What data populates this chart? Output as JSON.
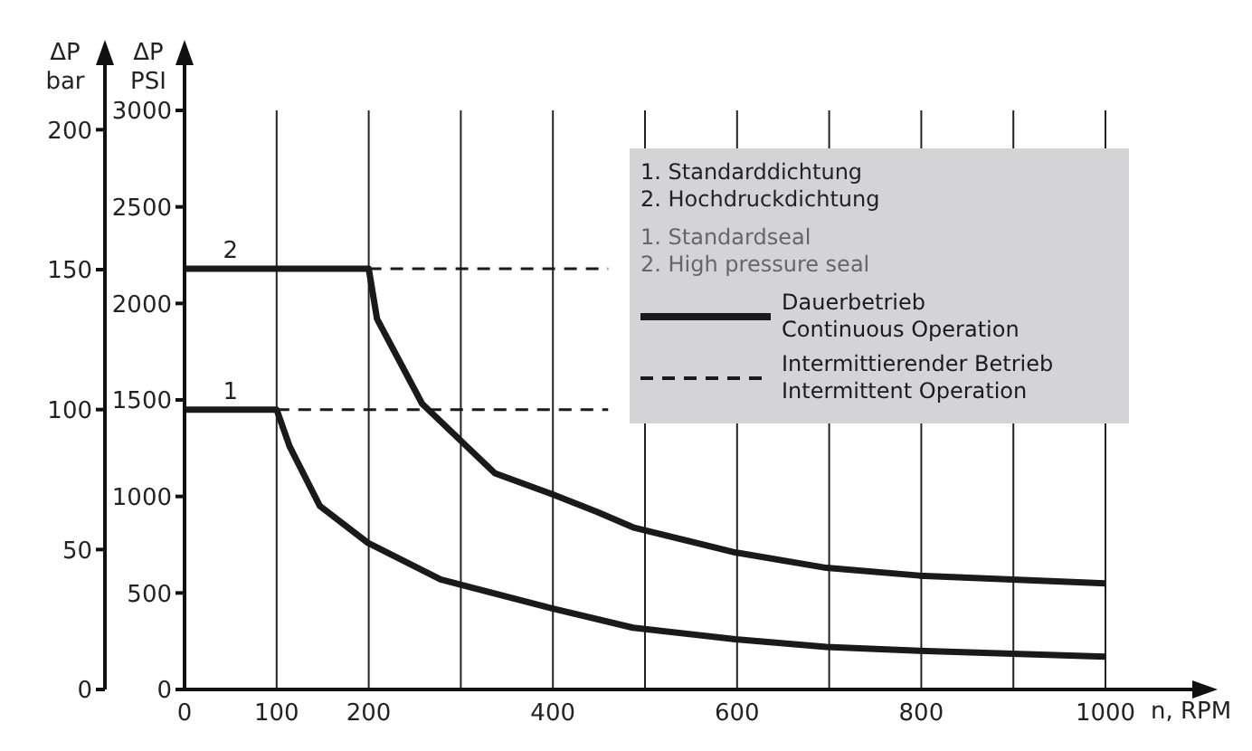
{
  "chart_data": {
    "type": "line",
    "xlabel": "n, RPM",
    "ylabel": "ΔP\nPSI",
    "y2label": "ΔP\nbar",
    "xlim": [
      0,
      1000
    ],
    "xticks": [
      0,
      100,
      200,
      {
        "value": 300,
        "label": null
      },
      400,
      {
        "value": 500,
        "label": null
      },
      600,
      {
        "value": 700,
        "label": null
      },
      800,
      {
        "value": 900,
        "label": null
      },
      1000
    ],
    "ylim": [
      0,
      3000
    ],
    "yticks": [
      0,
      500,
      1000,
      1500,
      2000,
      2500,
      3000
    ],
    "y2lim": [
      0,
      206.9
    ],
    "y2ticks": [
      0,
      50,
      100,
      150,
      200
    ],
    "grid": true,
    "legend": "top right",
    "line_style": "solid",
    "marker": "none",
    "series": [
      {
        "name": "Dauerbetrieb\nContinuous Operation",
        "color": "#1a1a1a",
        "x": [
          0,
          100,
          114,
          147,
          199,
          278,
          399,
          487,
          598,
          697,
          798,
          1000
        ],
        "values": [
          1450,
          1450,
          1260,
          950,
          760,
          570,
          420,
          320,
          260,
          220,
          200,
          170
        ]
      },
      {
        "color": "#1a1a1a",
        "x": [
          0,
          200,
          209,
          258,
          337,
          400,
          448,
          487,
          598,
          697,
          798,
          1000
        ],
        "values": [
          2180,
          2180,
          1920,
          1480,
          1120,
          1010,
          920,
          840,
          710,
          630,
          590,
          550
        ]
      },
      {
        "name": "Intermittierender Betrieb\nIntermittent Operation",
        "color": "#1a1a1a",
        "line_style": "dashed",
        "x": [
          100,
          460
        ],
        "values": [
          1450,
          1450
        ]
      },
      {
        "color": "#1a1a1a",
        "line_style": "dashed",
        "x": [
          200,
          460
        ],
        "values": [
          2180,
          2180
        ]
      }
    ],
    "annotations": [
      {
        "text": "1",
        "x": 50,
        "y": 1450
      },
      {
        "text": "2",
        "x": 50,
        "y": 2180
      },
      "1. Standarddichtung\n2. Hochdruckdichtung",
      "1. Standardseal\n2. High pressure seal"
    ]
  }
}
